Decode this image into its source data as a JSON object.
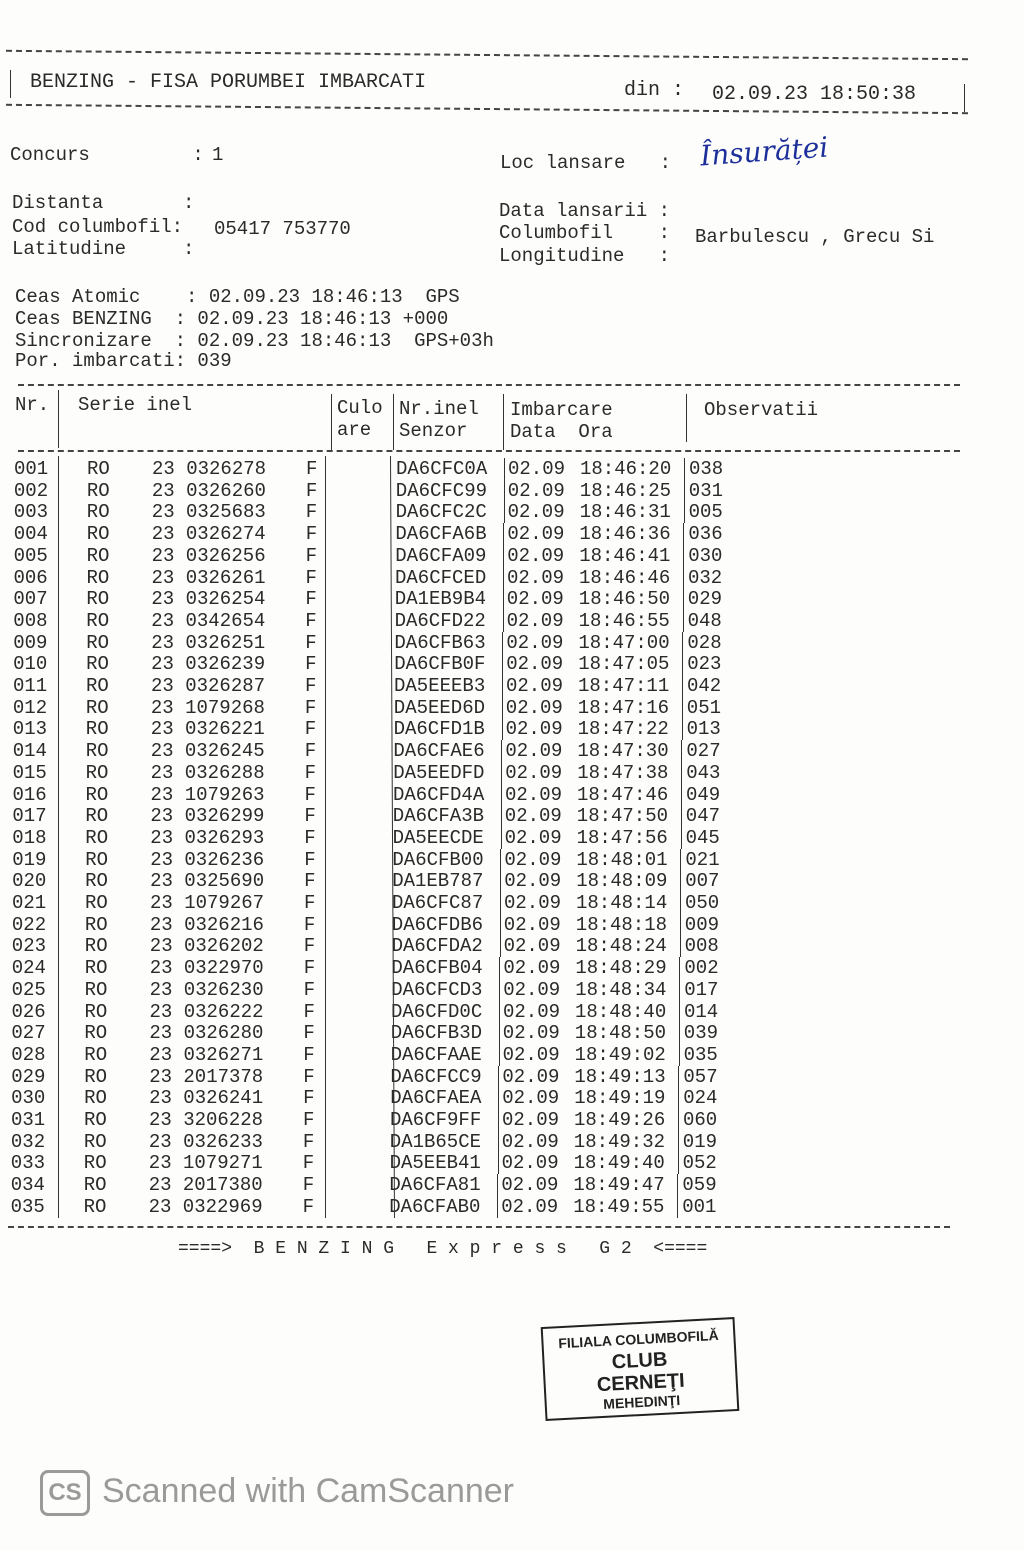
{
  "header": {
    "title": "BENZING - FISA PORUMBEI IMBARCATI",
    "din_label": "din :",
    "din_value": "02.09.23 18:50:38"
  },
  "info": {
    "concurs_label": "Concurs         :",
    "concurs_value": "1",
    "distanta_label": "Distanta       :",
    "cod_label": "Cod columbofil:",
    "cod_value": "05417 753770",
    "latitudine_label": "Latitudine     :",
    "loc_label": "Loc lansare   :",
    "loc_value_handwritten": "Însurăței",
    "data_lansarii_label": "Data lansarii :",
    "columbofil_label": "Columbofil    :",
    "columbofil_value": "Barbulescu , Grecu Si",
    "longitudine_label": "Longitudine   :"
  },
  "clocks": {
    "atomic": "Ceas Atomic    : 02.09.23 18:46:13  GPS",
    "benzing": "Ceas BENZING  : 02.09.23 18:46:13 +000",
    "sync": "Sincronizare  : 02.09.23 18:46:13  GPS+03h",
    "por": "Por. imbarcati: 039"
  },
  "table": {
    "headers": {
      "nr": "Nr.",
      "serie": "Serie inel",
      "culo1": "Culo",
      "culo2": "are",
      "nrinel1": "Nr.inel",
      "nrinel2": "Senzor",
      "imb1": "Imbarcare",
      "imb2": "Data  Ora",
      "obs": "Observatii"
    },
    "rows": [
      [
        "001",
        "RO",
        "23 0326278",
        "F",
        "DA6CFC0A",
        "02.09",
        "18:46:20",
        "038"
      ],
      [
        "002",
        "RO",
        "23 0326260",
        "F",
        "DA6CFC99",
        "02.09",
        "18:46:25",
        "031"
      ],
      [
        "003",
        "RO",
        "23 0325683",
        "F",
        "DA6CFC2C",
        "02.09",
        "18:46:31",
        "005"
      ],
      [
        "004",
        "RO",
        "23 0326274",
        "F",
        "DA6CFA6B",
        "02.09",
        "18:46:36",
        "036"
      ],
      [
        "005",
        "RO",
        "23 0326256",
        "F",
        "DA6CFA09",
        "02.09",
        "18:46:41",
        "030"
      ],
      [
        "006",
        "RO",
        "23 0326261",
        "F",
        "DA6CFCED",
        "02.09",
        "18:46:46",
        "032"
      ],
      [
        "007",
        "RO",
        "23 0326254",
        "F",
        "DA1EB9B4",
        "02.09",
        "18:46:50",
        "029"
      ],
      [
        "008",
        "RO",
        "23 0342654",
        "F",
        "DA6CFD22",
        "02.09",
        "18:46:55",
        "048"
      ],
      [
        "009",
        "RO",
        "23 0326251",
        "F",
        "DA6CFB63",
        "02.09",
        "18:47:00",
        "028"
      ],
      [
        "010",
        "RO",
        "23 0326239",
        "F",
        "DA6CFB0F",
        "02.09",
        "18:47:05",
        "023"
      ],
      [
        "011",
        "RO",
        "23 0326287",
        "F",
        "DA5EEEB3",
        "02.09",
        "18:47:11",
        "042"
      ],
      [
        "012",
        "RO",
        "23 1079268",
        "F",
        "DA5EED6D",
        "02.09",
        "18:47:16",
        "051"
      ],
      [
        "013",
        "RO",
        "23 0326221",
        "F",
        "DA6CFD1B",
        "02.09",
        "18:47:22",
        "013"
      ],
      [
        "014",
        "RO",
        "23 0326245",
        "F",
        "DA6CFAE6",
        "02.09",
        "18:47:30",
        "027"
      ],
      [
        "015",
        "RO",
        "23 0326288",
        "F",
        "DA5EEDFD",
        "02.09",
        "18:47:38",
        "043"
      ],
      [
        "016",
        "RO",
        "23 1079263",
        "F",
        "DA6CFD4A",
        "02.09",
        "18:47:46",
        "049"
      ],
      [
        "017",
        "RO",
        "23 0326299",
        "F",
        "DA6CFA3B",
        "02.09",
        "18:47:50",
        "047"
      ],
      [
        "018",
        "RO",
        "23 0326293",
        "F",
        "DA5EECDE",
        "02.09",
        "18:47:56",
        "045"
      ],
      [
        "019",
        "RO",
        "23 0326236",
        "F",
        "DA6CFB00",
        "02.09",
        "18:48:01",
        "021"
      ],
      [
        "020",
        "RO",
        "23 0325690",
        "F",
        "DA1EB787",
        "02.09",
        "18:48:09",
        "007"
      ],
      [
        "021",
        "RO",
        "23 1079267",
        "F",
        "DA6CFC87",
        "02.09",
        "18:48:14",
        "050"
      ],
      [
        "022",
        "RO",
        "23 0326216",
        "F",
        "DA6CFDB6",
        "02.09",
        "18:48:18",
        "009"
      ],
      [
        "023",
        "RO",
        "23 0326202",
        "F",
        "DA6CFDA2",
        "02.09",
        "18:48:24",
        "008"
      ],
      [
        "024",
        "RO",
        "23 0322970",
        "F",
        "DA6CFB04",
        "02.09",
        "18:48:29",
        "002"
      ],
      [
        "025",
        "RO",
        "23 0326230",
        "F",
        "DA6CFCD3",
        "02.09",
        "18:48:34",
        "017"
      ],
      [
        "026",
        "RO",
        "23 0326222",
        "F",
        "DA6CFD0C",
        "02.09",
        "18:48:40",
        "014"
      ],
      [
        "027",
        "RO",
        "23 0326280",
        "F",
        "DA6CFB3D",
        "02.09",
        "18:48:50",
        "039"
      ],
      [
        "028",
        "RO",
        "23 0326271",
        "F",
        "DA6CFAAE",
        "02.09",
        "18:49:02",
        "035"
      ],
      [
        "029",
        "RO",
        "23 2017378",
        "F",
        "DA6CFCC9",
        "02.09",
        "18:49:13",
        "057"
      ],
      [
        "030",
        "RO",
        "23 0326241",
        "F",
        "DA6CFAEA",
        "02.09",
        "18:49:19",
        "024"
      ],
      [
        "031",
        "RO",
        "23 3206228",
        "F",
        "DA6CF9FF",
        "02.09",
        "18:49:26",
        "060"
      ],
      [
        "032",
        "RO",
        "23 0326233",
        "F",
        "DA1B65CE",
        "02.09",
        "18:49:32",
        "019"
      ],
      [
        "033",
        "RO",
        "23 1079271",
        "F",
        "DA5EEB41",
        "02.09",
        "18:49:40",
        "052"
      ],
      [
        "034",
        "RO",
        "23 2017380",
        "F",
        "DA6CFA81",
        "02.09",
        "18:49:47",
        "059"
      ],
      [
        "035",
        "RO",
        "23 0322969",
        "F",
        "DA6CFAB0",
        "02.09",
        "18:49:55",
        "001"
      ]
    ]
  },
  "footer": "====>  B E N Z I N G   E x p r e s s   G 2  <====",
  "stamp": {
    "line1": "FILIALA COLUMBOFILĂ",
    "line2": "CLUB",
    "line3": "CERNEŢI",
    "line4": "MEHEDINŢI"
  },
  "watermark": {
    "logo": "CS",
    "text": "Scanned with CamScanner"
  }
}
